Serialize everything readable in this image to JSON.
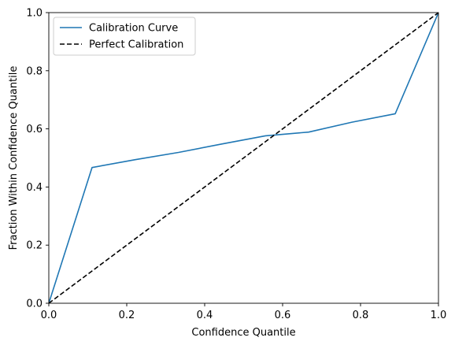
{
  "chart_data": {
    "type": "line",
    "title": "",
    "xlabel": "Confidence Quantile",
    "ylabel": "Fraction Within Confidence Quantile",
    "xlim": [
      0,
      1
    ],
    "ylim": [
      0,
      1
    ],
    "xticks": [
      "0.0",
      "0.2",
      "0.4",
      "0.6",
      "0.8",
      "1.0"
    ],
    "yticks": [
      "0.0",
      "0.2",
      "0.4",
      "0.6",
      "0.8",
      "1.0"
    ],
    "grid": false,
    "legend_position": "upper-left",
    "series": [
      {
        "name": "Calibration Curve",
        "color": "#1f77b4",
        "style": "solid",
        "x": [
          0.0,
          0.111,
          0.222,
          0.333,
          0.444,
          0.556,
          0.667,
          0.778,
          0.889,
          1.0
        ],
        "y": [
          0.0,
          0.467,
          0.494,
          0.519,
          0.548,
          0.576,
          0.589,
          0.623,
          0.652,
          1.0
        ]
      },
      {
        "name": "Perfect Calibration",
        "color": "#000000",
        "style": "dashed",
        "x": [
          0.0,
          1.0
        ],
        "y": [
          0.0,
          1.0
        ]
      }
    ]
  }
}
